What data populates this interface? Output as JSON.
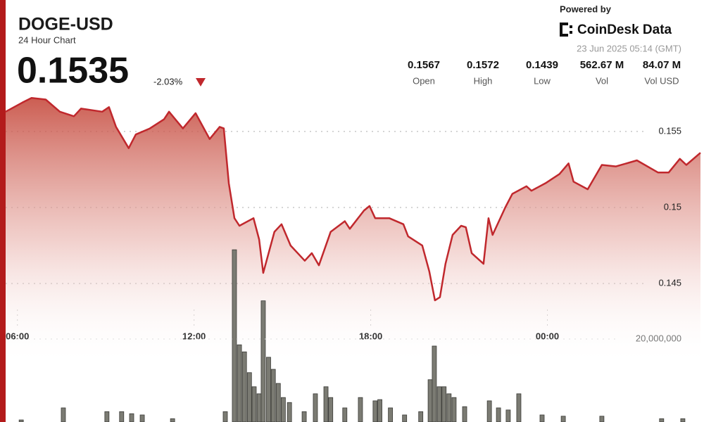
{
  "header": {
    "symbol": "DOGE-USD",
    "subtitle": "24 Hour Chart",
    "price": "0.1535",
    "change": "-2.03%"
  },
  "stats": [
    {
      "value": "0.1567",
      "label": "Open"
    },
    {
      "value": "0.1572",
      "label": "High"
    },
    {
      "value": "0.1439",
      "label": "Low"
    },
    {
      "value": "562.67 M",
      "label": "Vol"
    },
    {
      "value": "84.07 M",
      "label": "Vol USD"
    }
  ],
  "branding": {
    "powered": "Powered by",
    "logo": "CoinDesk Data",
    "timestamp": "23 Jun 2025 05:14 (GMT)"
  },
  "chart_data": {
    "type": "line",
    "x": [
      5.6,
      6.17,
      6.48,
      6.96,
      7.44,
      7.92,
      8.16,
      8.88,
      9.11,
      9.35,
      9.78,
      10.02,
      10.5,
      10.98,
      11.15,
      11.62,
      12.05,
      12.53,
      12.87,
      13.01,
      13.18,
      13.37,
      13.54,
      14.02,
      14.21,
      14.35,
      14.73,
      14.97,
      15.28,
      15.76,
      16.0,
      16.24,
      16.64,
      17.12,
      17.29,
      17.77,
      17.96,
      18.15,
      18.63,
      19.11,
      19.27,
      19.75,
      19.99,
      20.18,
      20.35,
      20.54,
      20.78,
      21.07,
      21.23,
      21.43,
      21.83,
      22.0,
      22.14,
      22.57,
      22.81,
      23.29,
      23.46,
      23.94,
      24.41,
      24.72,
      24.89,
      25.37,
      25.85,
      26.33,
      27.04,
      27.76,
      28.12,
      28.5,
      28.72,
      29.2
    ],
    "values": [
      0.1563,
      0.1569,
      0.1572,
      0.1571,
      0.1563,
      0.156,
      0.1565,
      0.1563,
      0.1566,
      0.1553,
      0.1539,
      0.1548,
      0.1552,
      0.1558,
      0.1563,
      0.1552,
      0.1562,
      0.1545,
      0.1553,
      0.1552,
      0.1516,
      0.1493,
      0.1488,
      0.1493,
      0.1479,
      0.1457,
      0.1484,
      0.1489,
      0.1475,
      0.1465,
      0.147,
      0.1462,
      0.1484,
      0.1491,
      0.1486,
      0.1498,
      0.1501,
      0.1493,
      0.1493,
      0.1489,
      0.1481,
      0.1475,
      0.1458,
      0.1439,
      0.1441,
      0.1463,
      0.1482,
      0.1488,
      0.1487,
      0.147,
      0.1463,
      0.1493,
      0.1482,
      0.15,
      0.1509,
      0.1514,
      0.1511,
      0.1516,
      0.1522,
      0.1529,
      0.1517,
      0.1512,
      0.1528,
      0.1527,
      0.1531,
      0.1523,
      0.1523,
      0.1532,
      0.1528,
      0.1536
    ],
    "color": "#c0282d",
    "xlim": [
      5.6,
      29.2
    ],
    "xticks": [
      {
        "value": 6,
        "label": "06:00"
      },
      {
        "value": 12,
        "label": "12:00"
      },
      {
        "value": 18,
        "label": "18:00"
      },
      {
        "value": 24,
        "label": "00:00"
      }
    ],
    "ylim": [
      0.1359,
      0.158
    ],
    "yticks": [
      0.145,
      0.15,
      0.155
    ],
    "grid": true,
    "volume": {
      "type": "bar",
      "axis": "y2",
      "color": "#7b7b73",
      "x": [
        6.13,
        7.56,
        9.04,
        9.54,
        9.88,
        10.24,
        11.27,
        13.06,
        13.37,
        13.54,
        13.71,
        13.88,
        14.04,
        14.21,
        14.35,
        14.53,
        14.69,
        14.86,
        15.03,
        15.24,
        15.74,
        16.12,
        16.48,
        16.64,
        17.12,
        17.65,
        18.15,
        18.31,
        18.67,
        19.15,
        19.7,
        20.02,
        20.16,
        20.33,
        20.49,
        20.66,
        20.83,
        21.19,
        22.03,
        22.34,
        22.67,
        23.03,
        23.82,
        24.54,
        25.85,
        27.88,
        28.6
      ],
      "values": [
        500000,
        3400000,
        2500000,
        2500000,
        2000000,
        1700000,
        800000,
        2500000,
        41500000,
        18600000,
        16900000,
        11900000,
        8500000,
        6800000,
        29200000,
        15600000,
        12700000,
        9300000,
        5900000,
        4700000,
        2500000,
        6800000,
        8500000,
        5900000,
        3400000,
        5900000,
        5100000,
        5400000,
        3400000,
        1700000,
        2500000,
        10200000,
        18300000,
        8500000,
        8500000,
        6800000,
        5900000,
        3700000,
        5100000,
        3400000,
        2900000,
        6800000,
        1700000,
        1400000,
        1400000,
        800000,
        800000
      ]
    },
    "y2lim": [
      0,
      81000000
    ],
    "y2ticks": [
      {
        "value": 20000000,
        "label": "20,000,000"
      }
    ]
  }
}
